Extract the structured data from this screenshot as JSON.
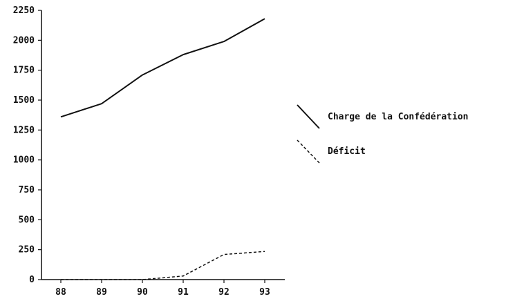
{
  "chart_data": {
    "type": "line",
    "x": [
      "88",
      "89",
      "90",
      "91",
      "92",
      "93"
    ],
    "series": [
      {
        "name": "Charge de la Confédération",
        "style": "solid",
        "values": [
          1360,
          1470,
          1710,
          1880,
          1990,
          2180
        ]
      },
      {
        "name": "Déficit",
        "style": "dashed",
        "values": [
          0,
          0,
          0,
          30,
          210,
          235
        ]
      }
    ],
    "xlabel": "",
    "ylabel": "",
    "ylim": [
      0,
      2250
    ],
    "y_ticks": [
      "0",
      "250",
      "500",
      "750",
      "1000",
      "1250",
      "1500",
      "1750",
      "2000",
      "2250"
    ],
    "grid": false,
    "legend_position": "right",
    "colors": {
      "line": "#111111"
    }
  }
}
